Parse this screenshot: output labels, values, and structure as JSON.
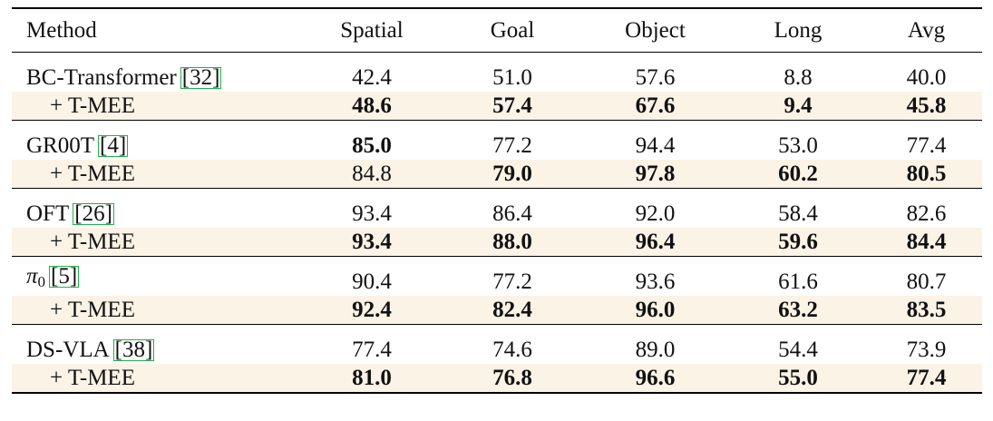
{
  "table": {
    "headers": [
      "Method",
      "Spatial",
      "Goal",
      "Object",
      "Long",
      "Avg"
    ],
    "groups": [
      {
        "base": {
          "name": "BC-Transformer",
          "cite": "32",
          "values": [
            "42.4",
            "51.0",
            "57.6",
            "8.8",
            "40.0"
          ],
          "bold": [
            false,
            false,
            false,
            false,
            false
          ]
        },
        "ext": {
          "name": "+ T-MEE",
          "values": [
            "48.6",
            "57.4",
            "67.6",
            "9.4",
            "45.8"
          ],
          "bold": [
            true,
            true,
            true,
            true,
            true
          ]
        }
      },
      {
        "base": {
          "name": "GR00T",
          "cite": "4",
          "values": [
            "85.0",
            "77.2",
            "94.4",
            "53.0",
            "77.4"
          ],
          "bold": [
            true,
            false,
            false,
            false,
            false
          ]
        },
        "ext": {
          "name": "+ T-MEE",
          "values": [
            "84.8",
            "79.0",
            "97.8",
            "60.2",
            "80.5"
          ],
          "bold": [
            false,
            true,
            true,
            true,
            true
          ]
        }
      },
      {
        "base": {
          "name": "OFT",
          "cite": "26",
          "values": [
            "93.4",
            "86.4",
            "92.0",
            "58.4",
            "82.6"
          ],
          "bold": [
            false,
            false,
            false,
            false,
            false
          ]
        },
        "ext": {
          "name": "+ T-MEE",
          "values": [
            "93.4",
            "88.0",
            "96.4",
            "59.6",
            "84.4"
          ],
          "bold": [
            true,
            true,
            true,
            true,
            true
          ]
        }
      },
      {
        "base": {
          "name": "π",
          "name_sub": "0",
          "cite": "5",
          "values": [
            "90.4",
            "77.2",
            "93.6",
            "61.6",
            "80.7"
          ],
          "bold": [
            false,
            false,
            false,
            false,
            false
          ]
        },
        "ext": {
          "name": "+ T-MEE",
          "values": [
            "92.4",
            "82.4",
            "96.0",
            "63.2",
            "83.5"
          ],
          "bold": [
            true,
            true,
            true,
            true,
            true
          ]
        }
      },
      {
        "base": {
          "name": "DS-VLA",
          "cite": "38",
          "values": [
            "77.4",
            "74.6",
            "89.0",
            "54.4",
            "73.9"
          ],
          "bold": [
            false,
            false,
            false,
            false,
            false
          ]
        },
        "ext": {
          "name": "+ T-MEE",
          "values": [
            "81.0",
            "76.8",
            "96.6",
            "55.0",
            "77.4"
          ],
          "bold": [
            true,
            true,
            true,
            true,
            true
          ]
        }
      }
    ]
  }
}
